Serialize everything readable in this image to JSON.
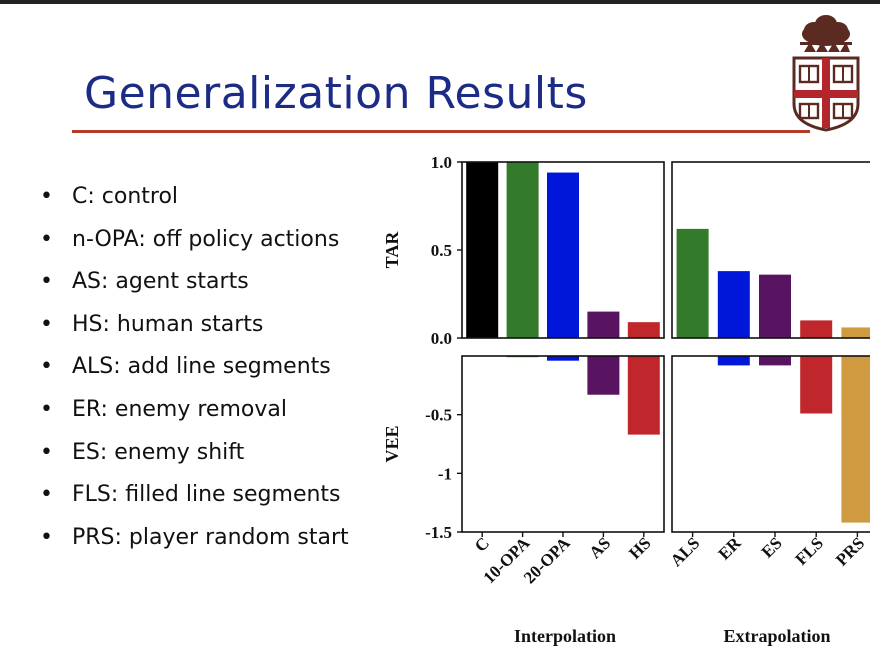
{
  "slide": {
    "title": "Generalization Results",
    "bullets": [
      "C: control",
      "n-OPA: off policy actions",
      "AS: agent starts",
      "HS: human starts",
      "ALS: add line segments",
      "ER: enemy removal",
      "ES: enemy shift",
      "FLS: filled line segments",
      "PRS: player random start"
    ],
    "colors": {
      "title": "#1b2b86",
      "rule": "#b33a2b"
    },
    "logo_icon": "university-shield-icon"
  },
  "chart_data": {
    "type": "bar",
    "groups": [
      {
        "label": "Interpolation",
        "categories": [
          "C",
          "10-OPA",
          "20-OPA",
          "AS",
          "HS"
        ]
      },
      {
        "label": "Extrapolation",
        "categories": [
          "ALS",
          "ER",
          "ES",
          "FLS",
          "PRS"
        ]
      }
    ],
    "colors": [
      "#000000",
      "#337a2b",
      "#0016d9",
      "#581460",
      "#c0272d",
      "#337a2b",
      "#0016d9",
      "#581460",
      "#c0272d",
      "#d09a40"
    ],
    "panels": [
      {
        "ylabel": "TAR",
        "ylim": [
          0,
          1.0
        ],
        "yticks": [
          0.0,
          0.5,
          1.0
        ],
        "ytick_labels": [
          "0.0",
          "0.5",
          "1.0"
        ],
        "values": [
          1.0,
          1.0,
          0.94,
          0.15,
          0.09,
          0.62,
          0.38,
          0.36,
          0.1,
          0.06
        ]
      },
      {
        "ylabel": "VEE",
        "ylim": [
          -1.5,
          0
        ],
        "yticks": [
          -0.5,
          -1,
          -1.5
        ],
        "ytick_labels": [
          "-0.5",
          "-1",
          "-1.5"
        ],
        "values": [
          0,
          -0.01,
          -0.04,
          -0.33,
          -0.67,
          0,
          -0.08,
          -0.08,
          -0.49,
          -1.42
        ]
      }
    ],
    "grid": false,
    "legend": "none"
  }
}
